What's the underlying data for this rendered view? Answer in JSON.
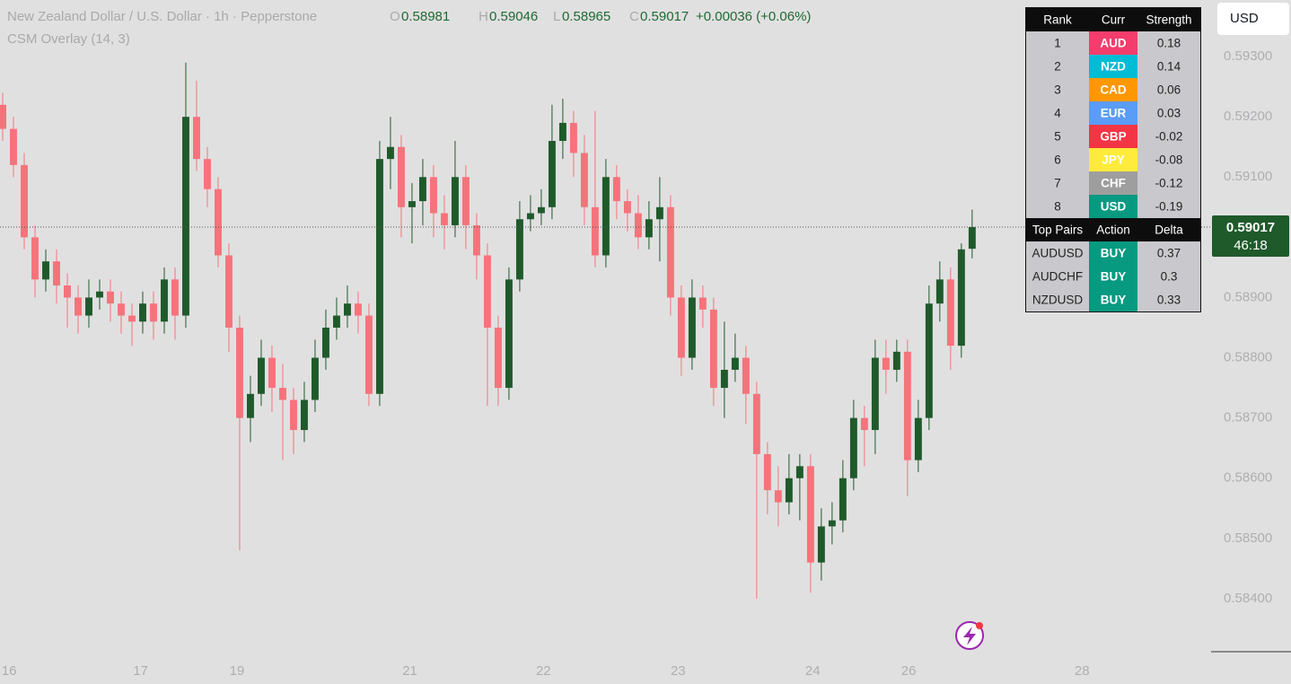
{
  "header": {
    "symbol": "New Zealand Dollar / U.S. Dollar · 1h · Pepperstone",
    "open_key": "O",
    "open": "0.58981",
    "high_key": "H",
    "high": "0.59046",
    "low_key": "L",
    "low": "0.58965",
    "close_key": "C",
    "close": "0.59017",
    "change": "+0.00036 (+0.06%)",
    "indicator": "CSM Overlay (14, 3)",
    "currency_button": "USD"
  },
  "chart_data": {
    "type": "candlestick",
    "up_color": "#1f5a2b",
    "down_color": "#f5737b",
    "ylim": [
      0.58306,
      0.59394
    ],
    "xlim": [
      -0.25,
      112.1
    ],
    "yticks": [
      {
        "value": 0.584,
        "label": "0.58400"
      },
      {
        "value": 0.585,
        "label": "0.58500"
      },
      {
        "value": 0.586,
        "label": "0.58600"
      },
      {
        "value": 0.587,
        "label": "0.58700"
      },
      {
        "value": 0.588,
        "label": "0.58800"
      },
      {
        "value": 0.589,
        "label": "0.58900"
      },
      {
        "value": 0.59,
        "label": "0.59000"
      },
      {
        "value": 0.591,
        "label": "0.59100"
      },
      {
        "value": 0.592,
        "label": "0.59200"
      },
      {
        "value": 0.593,
        "label": "0.59300"
      }
    ],
    "xticks": [
      {
        "value": 0.6,
        "label": "16"
      },
      {
        "value": 12.8,
        "label": "17"
      },
      {
        "value": 21.75,
        "label": "19"
      },
      {
        "value": 37.8,
        "label": "21"
      },
      {
        "value": 50.2,
        "label": "22"
      },
      {
        "value": 62.7,
        "label": "23"
      },
      {
        "value": 75.2,
        "label": "24"
      },
      {
        "value": 84.1,
        "label": "26"
      },
      {
        "value": 100.2,
        "label": "28"
      }
    ],
    "last_price": {
      "value": 0.59017,
      "label": "0.59017"
    },
    "countdown": "46:18",
    "candles": [
      [
        0.5922,
        0.5924,
        0.5916,
        0.5918
      ],
      [
        0.5918,
        0.592,
        0.591,
        0.5912
      ],
      [
        0.5912,
        0.5914,
        0.5898,
        0.59
      ],
      [
        0.59,
        0.5902,
        0.589,
        0.5893
      ],
      [
        0.5893,
        0.5898,
        0.5891,
        0.5896
      ],
      [
        0.5896,
        0.5898,
        0.5889,
        0.5892
      ],
      [
        0.5892,
        0.5894,
        0.5885,
        0.589
      ],
      [
        0.589,
        0.5892,
        0.5884,
        0.5887
      ],
      [
        0.5887,
        0.5893,
        0.5885,
        0.589
      ],
      [
        0.589,
        0.5893,
        0.5888,
        0.5891
      ],
      [
        0.5891,
        0.5893,
        0.5886,
        0.5889
      ],
      [
        0.5889,
        0.5891,
        0.5884,
        0.5887
      ],
      [
        0.5887,
        0.5889,
        0.5882,
        0.5886
      ],
      [
        0.5886,
        0.5891,
        0.5884,
        0.5889
      ],
      [
        0.5889,
        0.5891,
        0.5883,
        0.5886
      ],
      [
        0.5886,
        0.5895,
        0.5884,
        0.5893
      ],
      [
        0.5893,
        0.5895,
        0.5883,
        0.5887
      ],
      [
        0.5887,
        0.5929,
        0.5885,
        0.592
      ],
      [
        0.592,
        0.5926,
        0.5911,
        0.5913
      ],
      [
        0.5913,
        0.5915,
        0.5905,
        0.5908
      ],
      [
        0.5908,
        0.591,
        0.5895,
        0.5897
      ],
      [
        0.5897,
        0.5899,
        0.5881,
        0.5885
      ],
      [
        0.5885,
        0.5887,
        0.5848,
        0.587
      ],
      [
        0.587,
        0.5877,
        0.5866,
        0.5874
      ],
      [
        0.5874,
        0.5883,
        0.5872,
        0.588
      ],
      [
        0.588,
        0.5882,
        0.5871,
        0.5875
      ],
      [
        0.5875,
        0.5879,
        0.5863,
        0.5873
      ],
      [
        0.5873,
        0.5875,
        0.5864,
        0.5868
      ],
      [
        0.5868,
        0.5876,
        0.5866,
        0.5873
      ],
      [
        0.5873,
        0.5883,
        0.5871,
        0.588
      ],
      [
        0.588,
        0.5888,
        0.5878,
        0.5885
      ],
      [
        0.5885,
        0.589,
        0.5883,
        0.5887
      ],
      [
        0.5887,
        0.5892,
        0.5885,
        0.5889
      ],
      [
        0.5889,
        0.5891,
        0.5884,
        0.5887
      ],
      [
        0.5887,
        0.5889,
        0.5872,
        0.5874
      ],
      [
        0.5874,
        0.5916,
        0.5872,
        0.5913
      ],
      [
        0.5913,
        0.592,
        0.5908,
        0.5915
      ],
      [
        0.5915,
        0.5917,
        0.59,
        0.5905
      ],
      [
        0.5905,
        0.5909,
        0.5899,
        0.5906
      ],
      [
        0.5906,
        0.5913,
        0.5902,
        0.591
      ],
      [
        0.591,
        0.5912,
        0.59,
        0.5904
      ],
      [
        0.5904,
        0.5907,
        0.5898,
        0.5902
      ],
      [
        0.5902,
        0.5916,
        0.59,
        0.591
      ],
      [
        0.591,
        0.5912,
        0.5898,
        0.5902
      ],
      [
        0.5902,
        0.5904,
        0.5893,
        0.5897
      ],
      [
        0.5897,
        0.5899,
        0.5872,
        0.5885
      ],
      [
        0.5885,
        0.5887,
        0.5872,
        0.5875
      ],
      [
        0.5875,
        0.5895,
        0.5873,
        0.5893
      ],
      [
        0.5893,
        0.5906,
        0.5891,
        0.5903
      ],
      [
        0.5903,
        0.5907,
        0.5901,
        0.5904
      ],
      [
        0.5904,
        0.5908,
        0.5902,
        0.5905
      ],
      [
        0.5905,
        0.5922,
        0.5903,
        0.5916
      ],
      [
        0.5916,
        0.5923,
        0.5913,
        0.5919
      ],
      [
        0.5919,
        0.5921,
        0.591,
        0.5914
      ],
      [
        0.5914,
        0.5917,
        0.5902,
        0.5905
      ],
      [
        0.5905,
        0.5921,
        0.5895,
        0.5897
      ],
      [
        0.5897,
        0.5913,
        0.5895,
        0.591
      ],
      [
        0.591,
        0.5912,
        0.5903,
        0.5906
      ],
      [
        0.5906,
        0.5908,
        0.5901,
        0.5904
      ],
      [
        0.5904,
        0.5907,
        0.5898,
        0.59
      ],
      [
        0.59,
        0.5906,
        0.5898,
        0.5903
      ],
      [
        0.5903,
        0.591,
        0.5896,
        0.5905
      ],
      [
        0.5905,
        0.5907,
        0.5887,
        0.589
      ],
      [
        0.589,
        0.5892,
        0.5877,
        0.588
      ],
      [
        0.588,
        0.5893,
        0.5878,
        0.589
      ],
      [
        0.589,
        0.5892,
        0.5885,
        0.5888
      ],
      [
        0.5888,
        0.589,
        0.5872,
        0.5875
      ],
      [
        0.5875,
        0.5886,
        0.587,
        0.5878
      ],
      [
        0.5878,
        0.5884,
        0.5876,
        0.588
      ],
      [
        0.588,
        0.5882,
        0.5869,
        0.5874
      ],
      [
        0.5874,
        0.5876,
        0.584,
        0.5864
      ],
      [
        0.5864,
        0.5866,
        0.5854,
        0.5858
      ],
      [
        0.5858,
        0.5862,
        0.5852,
        0.5856
      ],
      [
        0.5856,
        0.5864,
        0.5854,
        0.586
      ],
      [
        0.586,
        0.5864,
        0.5853,
        0.5862
      ],
      [
        0.5862,
        0.5864,
        0.5841,
        0.5846
      ],
      [
        0.5846,
        0.5855,
        0.5843,
        0.5852
      ],
      [
        0.5852,
        0.5856,
        0.5849,
        0.5853
      ],
      [
        0.5853,
        0.5863,
        0.5851,
        0.586
      ],
      [
        0.586,
        0.5873,
        0.5858,
        0.587
      ],
      [
        0.587,
        0.5872,
        0.5862,
        0.5868
      ],
      [
        0.5868,
        0.5883,
        0.5864,
        0.588
      ],
      [
        0.588,
        0.5883,
        0.5874,
        0.5878
      ],
      [
        0.5878,
        0.5883,
        0.5876,
        0.5881
      ],
      [
        0.5881,
        0.5883,
        0.5857,
        0.5863
      ],
      [
        0.5863,
        0.5873,
        0.5861,
        0.587
      ],
      [
        0.587,
        0.5892,
        0.5868,
        0.5889
      ],
      [
        0.5889,
        0.5896,
        0.5886,
        0.5893
      ],
      [
        0.5893,
        0.5895,
        0.5878,
        0.5882
      ],
      [
        0.5882,
        0.5899,
        0.588,
        0.5898
      ],
      [
        0.58981,
        0.59046,
        0.58965,
        0.59017
      ]
    ]
  },
  "strength_table": {
    "columns": [
      "Rank",
      "Curr",
      "Strength"
    ],
    "rows": [
      {
        "rank": "1",
        "currency": "AUD",
        "color": "#f23d6d",
        "strength": "0.18"
      },
      {
        "rank": "2",
        "currency": "NZD",
        "color": "#00bcd4",
        "strength": "0.14"
      },
      {
        "rank": "3",
        "currency": "CAD",
        "color": "#ff9800",
        "strength": "0.06"
      },
      {
        "rank": "4",
        "currency": "EUR",
        "color": "#5b9cf6",
        "strength": "0.03"
      },
      {
        "rank": "5",
        "currency": "GBP",
        "color": "#f23645",
        "strength": "-0.02"
      },
      {
        "rank": "6",
        "currency": "JPY",
        "color": "#ffeb3b",
        "strength": "-0.08"
      },
      {
        "rank": "7",
        "currency": "CHF",
        "color": "#9e9e9e",
        "strength": "-0.12"
      },
      {
        "rank": "8",
        "currency": "USD",
        "color": "#089981",
        "strength": "-0.19"
      }
    ],
    "pair_columns": [
      "Top Pairs",
      "Action",
      "Delta"
    ],
    "action_color": "#089981",
    "pairs": [
      {
        "pair": "AUDUSD",
        "action": "BUY",
        "delta": "0.37"
      },
      {
        "pair": "AUDCHF",
        "action": "BUY",
        "delta": "0.3"
      },
      {
        "pair": "NZDUSD",
        "action": "BUY",
        "delta": "0.33"
      }
    ]
  }
}
